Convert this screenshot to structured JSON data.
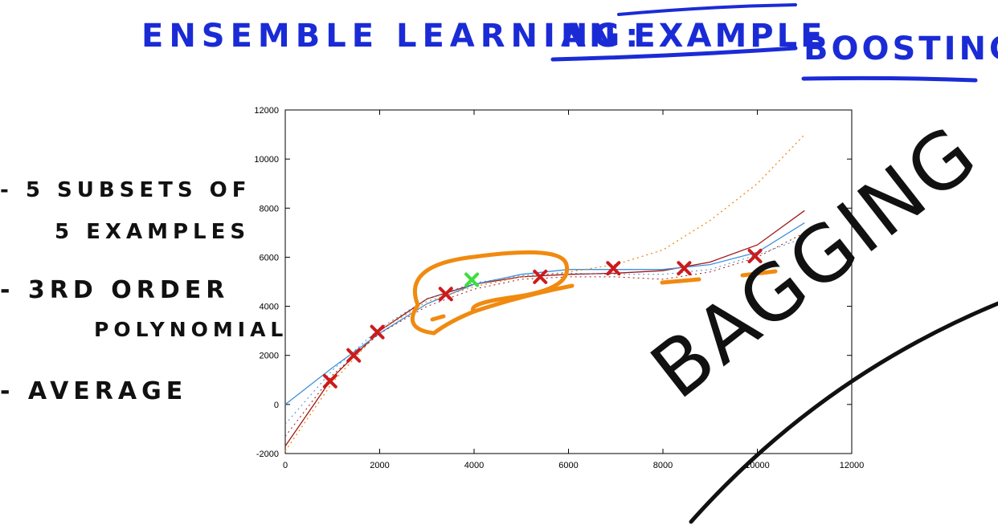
{
  "title": {
    "left": "ENSEMBLE LEARNING:",
    "struck": "AN EXAMPLE",
    "replacement": "BOOSTING"
  },
  "notes": [
    "- 5 SUBSETS OF",
    "5 EXAMPLES",
    "- 3RD ORDER",
    "POLYNOMIAL",
    "- AVERAGE"
  ],
  "overlay_word": "BAGGING",
  "colors": {
    "title_ink": "#1a2bd6",
    "ink": "#111111",
    "orange": "#f08a10",
    "point_red": "#cc1b1b",
    "point_green": "#39e03a",
    "curve_red": "#a01818",
    "curve_blue": "#3f8fd8"
  },
  "chart_data": {
    "type": "scatter",
    "xlim": [
      0,
      12000
    ],
    "ylim": [
      -2000,
      12000
    ],
    "xticks": [
      "0",
      "2000",
      "4000",
      "6000",
      "8000",
      "10000",
      "12000"
    ],
    "yticks": [
      "-2000",
      "0",
      "2000",
      "4000",
      "6000",
      "8000",
      "10000",
      "12000"
    ],
    "grid": false,
    "points": [
      {
        "x": 950,
        "y": 950
      },
      {
        "x": 1450,
        "y": 2000
      },
      {
        "x": 1950,
        "y": 2950
      },
      {
        "x": 3400,
        "y": 4500
      },
      {
        "x": 5400,
        "y": 5200
      },
      {
        "x": 6950,
        "y": 5550
      },
      {
        "x": 8450,
        "y": 5550
      },
      {
        "x": 9950,
        "y": 6050
      }
    ],
    "highlighted_point": {
      "x": 3950,
      "y": 5080
    },
    "curves": [
      {
        "style": "solid-red",
        "x": [
          0,
          1000,
          2000,
          3000,
          4000,
          5000,
          6000,
          7000,
          8000,
          9000,
          10000,
          11000
        ],
        "y": [
          -1700,
          1100,
          3000,
          4300,
          4900,
          5200,
          5300,
          5350,
          5450,
          5800,
          6500,
          7900
        ]
      },
      {
        "style": "solid-blue",
        "x": [
          0,
          1000,
          2000,
          3000,
          4000,
          5000,
          6000,
          7000,
          8000,
          9000,
          10000,
          11000
        ],
        "y": [
          0,
          1500,
          2900,
          4100,
          4900,
          5300,
          5500,
          5500,
          5500,
          5700,
          6200,
          7400
        ]
      },
      {
        "style": "dotted-orange",
        "x": [
          0,
          1000,
          2000,
          3000,
          4000,
          5000,
          6000,
          7000,
          8000,
          9000,
          10000,
          11000
        ],
        "y": [
          -1900,
          900,
          3000,
          4200,
          4800,
          5200,
          5400,
          5700,
          6300,
          7500,
          9000,
          11000
        ]
      },
      {
        "style": "dotted-red",
        "x": [
          0,
          1000,
          2000,
          3000,
          4000,
          5000,
          6000,
          7000,
          8000,
          9000,
          10000,
          11000
        ],
        "y": [
          -1300,
          1200,
          2900,
          4000,
          4700,
          5100,
          5200,
          5200,
          5100,
          5400,
          6000,
          7000
        ]
      },
      {
        "style": "dotted-blue",
        "x": [
          0,
          1000,
          2000,
          3000,
          4000,
          5000,
          6000,
          7000,
          8000,
          9000,
          10000,
          11000
        ],
        "y": [
          -800,
          1400,
          3100,
          4300,
          4950,
          5250,
          5350,
          5300,
          5300,
          5500,
          6100,
          6800
        ]
      }
    ]
  }
}
